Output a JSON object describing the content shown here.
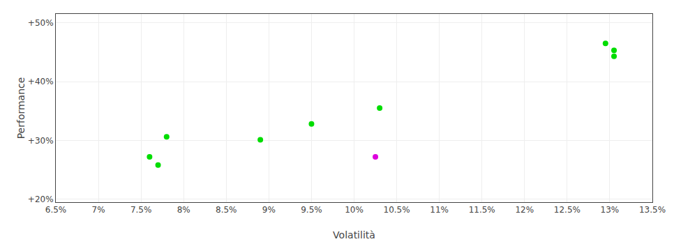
{
  "chart_data": {
    "type": "scatter",
    "xlabel": "Volatilità",
    "ylabel": "Performance",
    "xlim": [
      0.065,
      0.135
    ],
    "ylim": [
      0.195,
      0.515
    ],
    "xticks": [
      {
        "value": 0.065,
        "label": "6.5%"
      },
      {
        "value": 0.07,
        "label": "7%"
      },
      {
        "value": 0.075,
        "label": "7.5%"
      },
      {
        "value": 0.08,
        "label": "8%"
      },
      {
        "value": 0.085,
        "label": "8.5%"
      },
      {
        "value": 0.09,
        "label": "9%"
      },
      {
        "value": 0.095,
        "label": "9.5%"
      },
      {
        "value": 0.1,
        "label": "10%"
      },
      {
        "value": 0.105,
        "label": "10.5%"
      },
      {
        "value": 0.11,
        "label": "11%"
      },
      {
        "value": 0.115,
        "label": "11.5%"
      },
      {
        "value": 0.12,
        "label": "12%"
      },
      {
        "value": 0.125,
        "label": "12.5%"
      },
      {
        "value": 0.13,
        "label": "13%"
      },
      {
        "value": 0.135,
        "label": "13.5%"
      }
    ],
    "yticks": [
      {
        "value": 0.2,
        "label": "+20%"
      },
      {
        "value": 0.3,
        "label": "+30%"
      },
      {
        "value": 0.4,
        "label": "+40%"
      },
      {
        "value": 0.5,
        "label": "+50%"
      }
    ],
    "grid": true,
    "series": [
      {
        "color": "#00dd00",
        "x": [
          0.078,
          0.076,
          0.077,
          0.089,
          0.095,
          0.103,
          0.1295,
          0.1305,
          0.1305
        ],
        "values": [
          0.306,
          0.272,
          0.258,
          0.301,
          0.328,
          0.355,
          0.465,
          0.453,
          0.443
        ]
      },
      {
        "color": "#dd00dd",
        "x": [
          0.1025
        ],
        "values": [
          0.272
        ]
      }
    ]
  }
}
